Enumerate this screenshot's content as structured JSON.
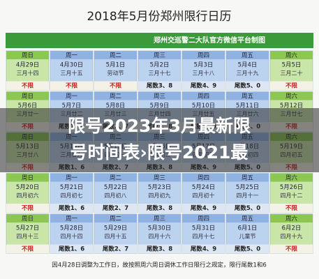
{
  "title": "2018年5月份郑州限行日历",
  "banner": "郑州交巡警二大队官方微信平台制图",
  "calendar": {
    "rows": [
      [
        {
          "weekday": "周日",
          "date": "4月29日",
          "lunar": "三月十四",
          "limit": "不限"
        },
        {
          "weekday": "周一",
          "date": "4月30日",
          "lunar": "三月十五",
          "limit": "不限"
        },
        {
          "weekday": "周二",
          "date": "5月1日",
          "lunar": "劳动节",
          "limit": "不限"
        },
        {
          "weekday": "周三",
          "date": "5月2日",
          "lunar": "三月十七",
          "limit": "尾数3、8"
        },
        {
          "weekday": "周四",
          "date": "5月3日",
          "lunar": "三月十八",
          "limit": "尾数4、9"
        },
        {
          "weekday": "周五",
          "date": "5月4日",
          "lunar": "三月十九",
          "limit": "尾数5、0"
        },
        {
          "weekday": "周六",
          "date": "5月5日",
          "lunar": "三月二十",
          "limit": "不限"
        }
      ],
      [
        {
          "weekday": "周日",
          "date": "5月6日",
          "lunar": "三月廿一",
          "limit": "不限"
        },
        {
          "weekday": "周一",
          "date": "5月7日",
          "lunar": "三月廿二",
          "limit": "尾数1、6"
        },
        {
          "weekday": "周二",
          "date": "5月8日",
          "lunar": "三月廿三",
          "limit": "尾数2、7"
        },
        {
          "weekday": "周三",
          "date": "5月9日",
          "lunar": "三月廿四",
          "limit": "尾数3、8"
        },
        {
          "weekday": "周四",
          "date": "5月10日",
          "lunar": "三月廿五",
          "limit": "尾数4、9"
        },
        {
          "weekday": "周五",
          "date": "5月11日",
          "lunar": "三月廿六",
          "limit": "尾数5、0"
        },
        {
          "weekday": "周六",
          "date": "5月12日",
          "lunar": "三月廿七",
          "limit": "不限"
        }
      ],
      [
        {
          "weekday": "周日",
          "date": "5月13日",
          "lunar": "三月廿八",
          "limit": "不限"
        },
        {
          "weekday": "周一",
          "date": "5月14日",
          "lunar": "三月廿九",
          "limit": "尾数1、6"
        },
        {
          "weekday": "周二",
          "date": "5月15日",
          "lunar": "四月初一",
          "limit": "尾数2、7"
        },
        {
          "weekday": "周三",
          "date": "5月16日",
          "lunar": "四月初二",
          "limit": "尾数3、8"
        },
        {
          "weekday": "周四",
          "date": "5月17日",
          "lunar": "四月初三",
          "limit": "尾数4、9"
        },
        {
          "weekday": "周五",
          "date": "5月18日",
          "lunar": "四月初四",
          "limit": "尾数5、0"
        },
        {
          "weekday": "周六",
          "date": "5月19日",
          "lunar": "四月初五",
          "limit": "不限"
        }
      ],
      [
        {
          "weekday": "周日",
          "date": "5月20日",
          "lunar": "四月初六",
          "limit": "不限"
        },
        {
          "weekday": "周一",
          "date": "5月21日",
          "lunar": "四月初七",
          "limit": "尾数1、6"
        },
        {
          "weekday": "周二",
          "date": "5月22日",
          "lunar": "四月初八",
          "limit": "尾数2、7"
        },
        {
          "weekday": "周三",
          "date": "5月23日",
          "lunar": "四月初九",
          "limit": "尾数3、8"
        },
        {
          "weekday": "周四",
          "date": "5月24日",
          "lunar": "四月初十",
          "limit": "尾数4、9"
        },
        {
          "weekday": "周五",
          "date": "5月25日",
          "lunar": "四月十一",
          "limit": "尾数5、0"
        },
        {
          "weekday": "周六",
          "date": "5月26日",
          "lunar": "四月十二",
          "limit": "不限"
        }
      ],
      [
        {
          "weekday": "周日",
          "date": "5月27日",
          "lunar": "四月十三",
          "limit": "不限"
        },
        {
          "weekday": "周一",
          "date": "5月28日",
          "lunar": "四月十四",
          "limit": "尾数1、6"
        },
        {
          "weekday": "周二",
          "date": "5月29日",
          "lunar": "四月十五",
          "limit": "尾数2、7"
        },
        {
          "weekday": "周三",
          "date": "5月30日",
          "lunar": "四月十六",
          "limit": "尾数3、8"
        },
        {
          "weekday": "周四",
          "date": "5月31日",
          "lunar": "四月十七",
          "limit": "尾数4、9"
        },
        {
          "weekday": "周五",
          "date": "6月1日",
          "lunar": "儿童节",
          "limit": "尾数5、0"
        },
        {
          "weekday": "周六",
          "date": "6月2日",
          "lunar": "四月十九",
          "limit": "不限"
        }
      ]
    ]
  },
  "footer": "因4月28日调整为工作日，故按照周六周日调休工作日限行之规定，限行尾数1和6",
  "overlay": {
    "lines": [
      "限号2023年3月最新限",
      "号时间表›限号2021最"
    ]
  }
}
